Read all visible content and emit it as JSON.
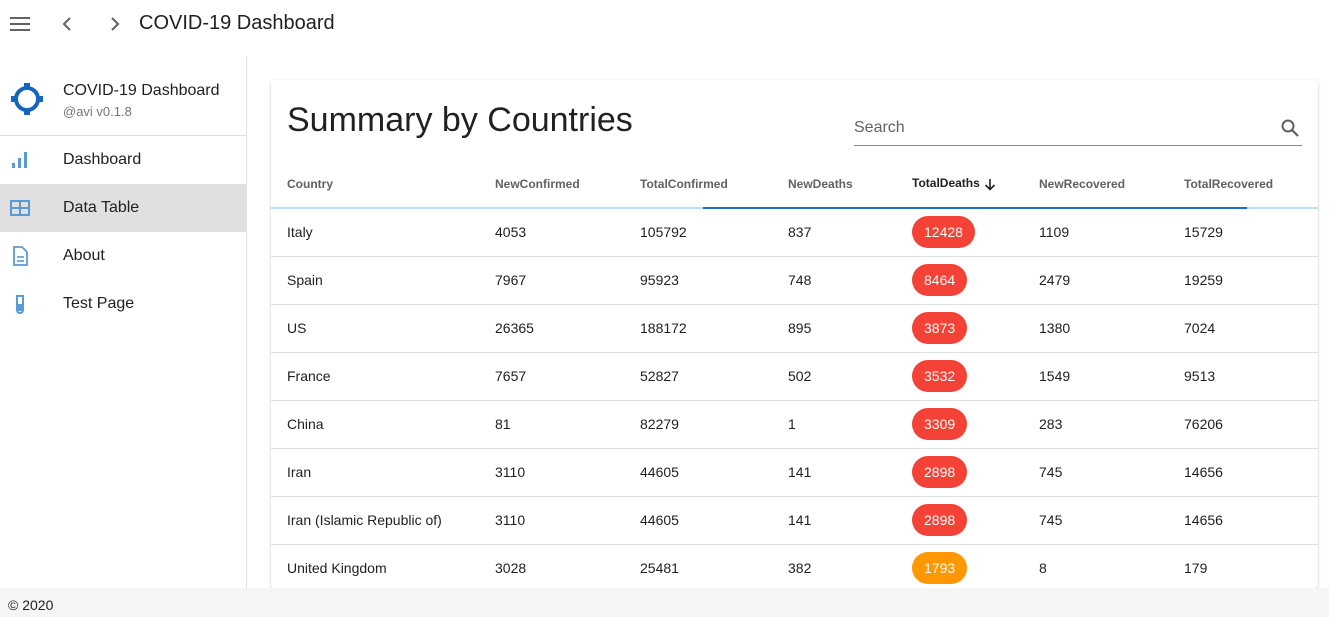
{
  "appbar": {
    "title": "COVID-19 Dashboard",
    "icons": [
      "menu-icon",
      "chevron-left-icon",
      "chevron-right-icon"
    ]
  },
  "sidebar": {
    "brand_name": "COVID-19 Dashboard",
    "brand_version": "@avi v0.1.8",
    "items": [
      {
        "label": "Dashboard",
        "icon": "bar-chart-icon",
        "active": false
      },
      {
        "label": "Data Table",
        "icon": "table-icon",
        "active": true
      },
      {
        "label": "About",
        "icon": "document-icon",
        "active": false
      },
      {
        "label": "Test Page",
        "icon": "test-tube-icon",
        "active": false
      }
    ]
  },
  "main": {
    "title": "Summary by Countries",
    "search": {
      "placeholder": "Search",
      "value": ""
    },
    "columns": [
      "Country",
      "NewConfirmed",
      "TotalConfirmed",
      "NewDeaths",
      "TotalDeaths",
      "NewRecovered",
      "TotalRecovered"
    ],
    "sort": {
      "column": "TotalDeaths",
      "direction": "descending"
    },
    "rows": [
      {
        "country": "Italy",
        "new_confirmed": "4053",
        "total_confirmed": "105792",
        "new_deaths": "837",
        "total_deaths": "12428",
        "badge": "red",
        "new_recovered": "1109",
        "total_recovered": "15729"
      },
      {
        "country": "Spain",
        "new_confirmed": "7967",
        "total_confirmed": "95923",
        "new_deaths": "748",
        "total_deaths": "8464",
        "badge": "red",
        "new_recovered": "2479",
        "total_recovered": "19259"
      },
      {
        "country": "US",
        "new_confirmed": "26365",
        "total_confirmed": "188172",
        "new_deaths": "895",
        "total_deaths": "3873",
        "badge": "red",
        "new_recovered": "1380",
        "total_recovered": "7024"
      },
      {
        "country": "France",
        "new_confirmed": "7657",
        "total_confirmed": "52827",
        "new_deaths": "502",
        "total_deaths": "3532",
        "badge": "red",
        "new_recovered": "1549",
        "total_recovered": "9513"
      },
      {
        "country": "China",
        "new_confirmed": "81",
        "total_confirmed": "82279",
        "new_deaths": "1",
        "total_deaths": "3309",
        "badge": "red",
        "new_recovered": "283",
        "total_recovered": "76206"
      },
      {
        "country": "Iran",
        "new_confirmed": "3110",
        "total_confirmed": "44605",
        "new_deaths": "141",
        "total_deaths": "2898",
        "badge": "red",
        "new_recovered": "745",
        "total_recovered": "14656"
      },
      {
        "country": "Iran (Islamic Republic of)",
        "new_confirmed": "3110",
        "total_confirmed": "44605",
        "new_deaths": "141",
        "total_deaths": "2898",
        "badge": "red",
        "new_recovered": "745",
        "total_recovered": "14656"
      },
      {
        "country": "United Kingdom",
        "new_confirmed": "3028",
        "total_confirmed": "25481",
        "new_deaths": "382",
        "total_deaths": "1793",
        "badge": "orange",
        "new_recovered": "8",
        "total_recovered": "179"
      }
    ]
  },
  "footer": {
    "text": "© 2020"
  },
  "colors": {
    "badge_red": "#f44336",
    "badge_orange": "#ff9800",
    "accent_blue": "#1e6fc9",
    "active_nav": "#e0e0e0"
  }
}
